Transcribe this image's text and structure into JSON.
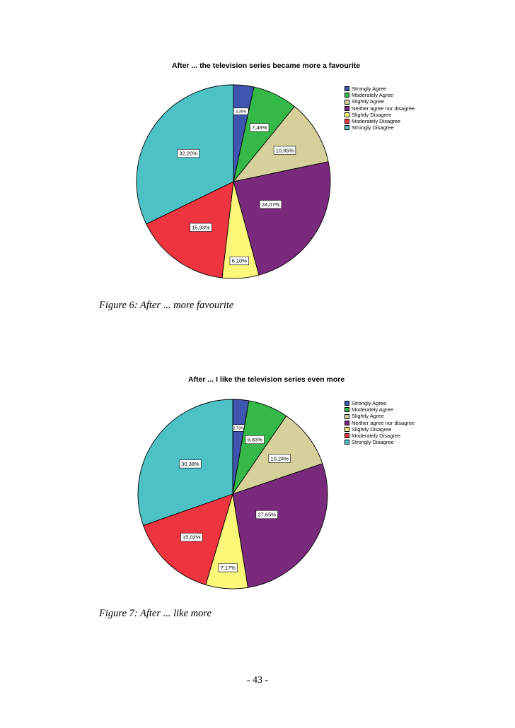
{
  "chart_data": [
    {
      "type": "pie",
      "title": "After ... the television series became more a favourite",
      "categories": [
        "Strongly Agree",
        "Moderately Agree",
        "Slightly Agree",
        "Neither agree nor disagree",
        "Slightly Disagree",
        "Moderately Disagree",
        "Strongly Disagree"
      ],
      "values": [
        3.39,
        7.46,
        10.85,
        24.07,
        6.1,
        15.93,
        32.2
      ],
      "value_labels": [
        "3,39%",
        "7,46%",
        "10,85%",
        "24,07%",
        "6,10%",
        "15,93%",
        "32,20%"
      ],
      "colors": [
        "#3f56b0",
        "#34b948",
        "#d6d19a",
        "#7a2a7c",
        "#faf779",
        "#ee343f",
        "#4cc2c6"
      ],
      "legend_position": "right"
    },
    {
      "type": "pie",
      "title": "After ... I like the television series even more",
      "categories": [
        "Strongly Agree",
        "Moderately Agree",
        "Slightly Agree",
        "Neither agree nor disagree",
        "Slightly Disagree",
        "Moderately Disagree",
        "Strongly Disagree"
      ],
      "values": [
        2.73,
        6.83,
        10.24,
        27.65,
        7.17,
        15.02,
        30.38
      ],
      "value_labels": [
        "2,73%",
        "6,83%",
        "10,24%",
        "27,65%",
        "7,17%",
        "15,02%",
        "30,38%"
      ],
      "colors": [
        "#3f56b0",
        "#34b948",
        "#d6d19a",
        "#7a2a7c",
        "#faf779",
        "#ee343f",
        "#4cc2c6"
      ],
      "legend_position": "right"
    }
  ],
  "captions": [
    "Figure 6: After ... more favourite",
    "Figure 7: After ... like more"
  ],
  "page_number": "- 43 -"
}
